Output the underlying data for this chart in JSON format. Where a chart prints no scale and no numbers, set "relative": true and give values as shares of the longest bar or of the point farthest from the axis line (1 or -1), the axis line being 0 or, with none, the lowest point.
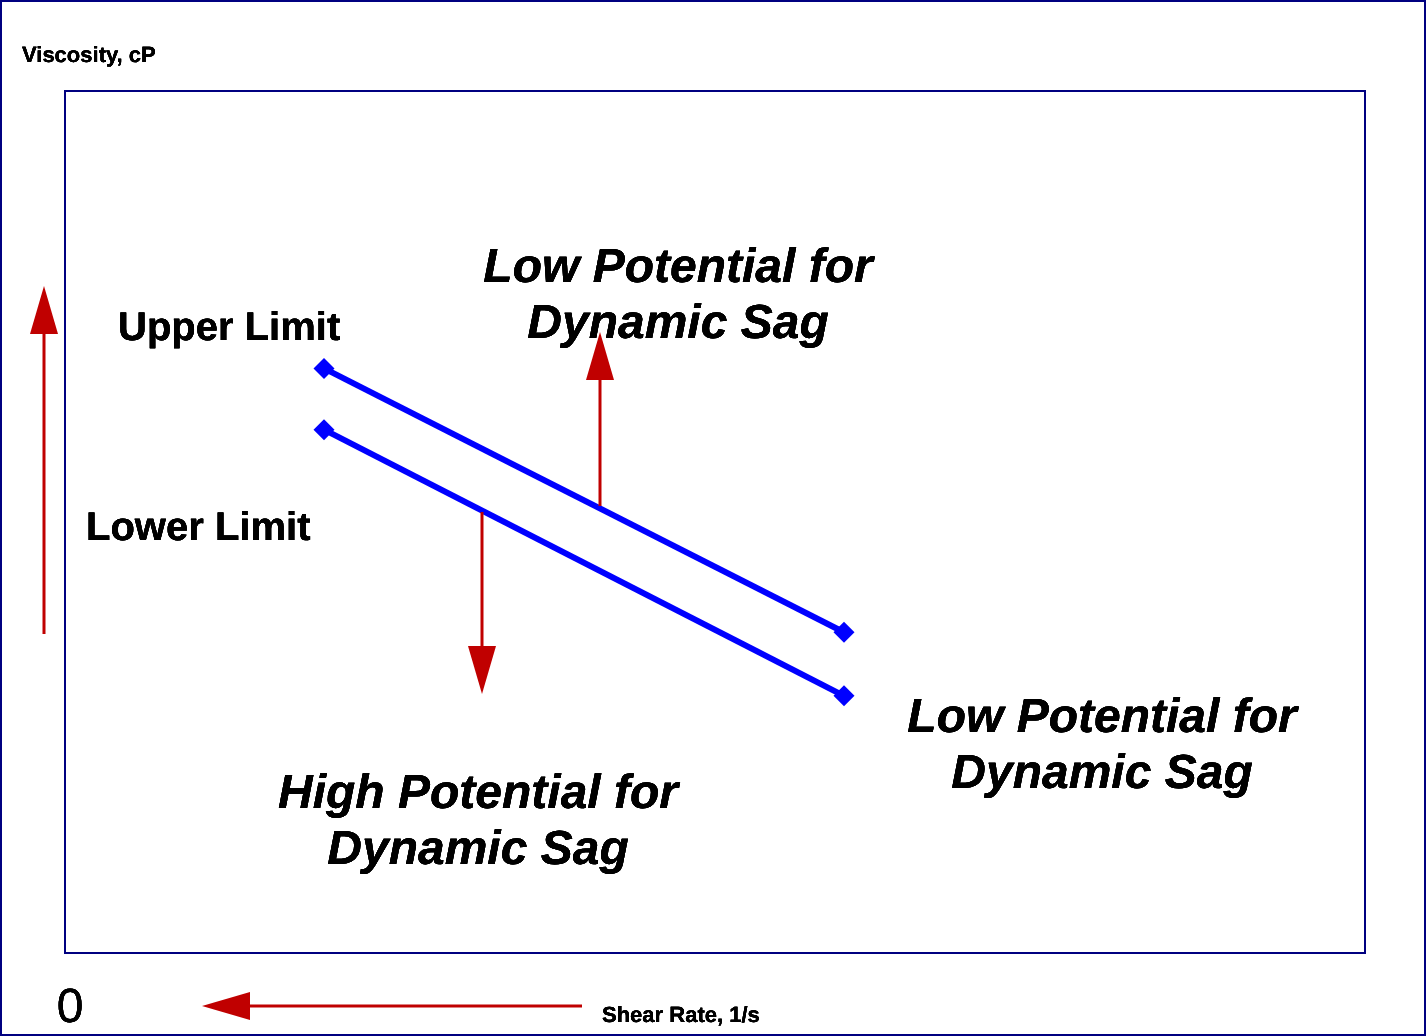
{
  "chart_data": {
    "type": "line",
    "relative": true,
    "xlabel": "Shear Rate, 1/s",
    "categories": [
      null,
      null,
      null,
      null,
      null,
      null
    ],
    "series": [
      {
        "name": "Upper Limit",
        "color": "#0000ff",
        "values": [
          null,
          1,
          null,
          0.548,
          null,
          null
        ]
      },
      {
        "name": "Lower Limit",
        "color": "#0000ff",
        "values": [
          null,
          0.895,
          null,
          0.439,
          null,
          null
        ]
      }
    ],
    "annotations": [
      "Low Potential for\nDynamic Sag",
      "Low Potential for\nDynamic Sag",
      "High Potential for\nDynamic Sag",
      "0",
      "Viscosity, cP"
    ],
    "marker": "diamond",
    "legend": false
  }
}
